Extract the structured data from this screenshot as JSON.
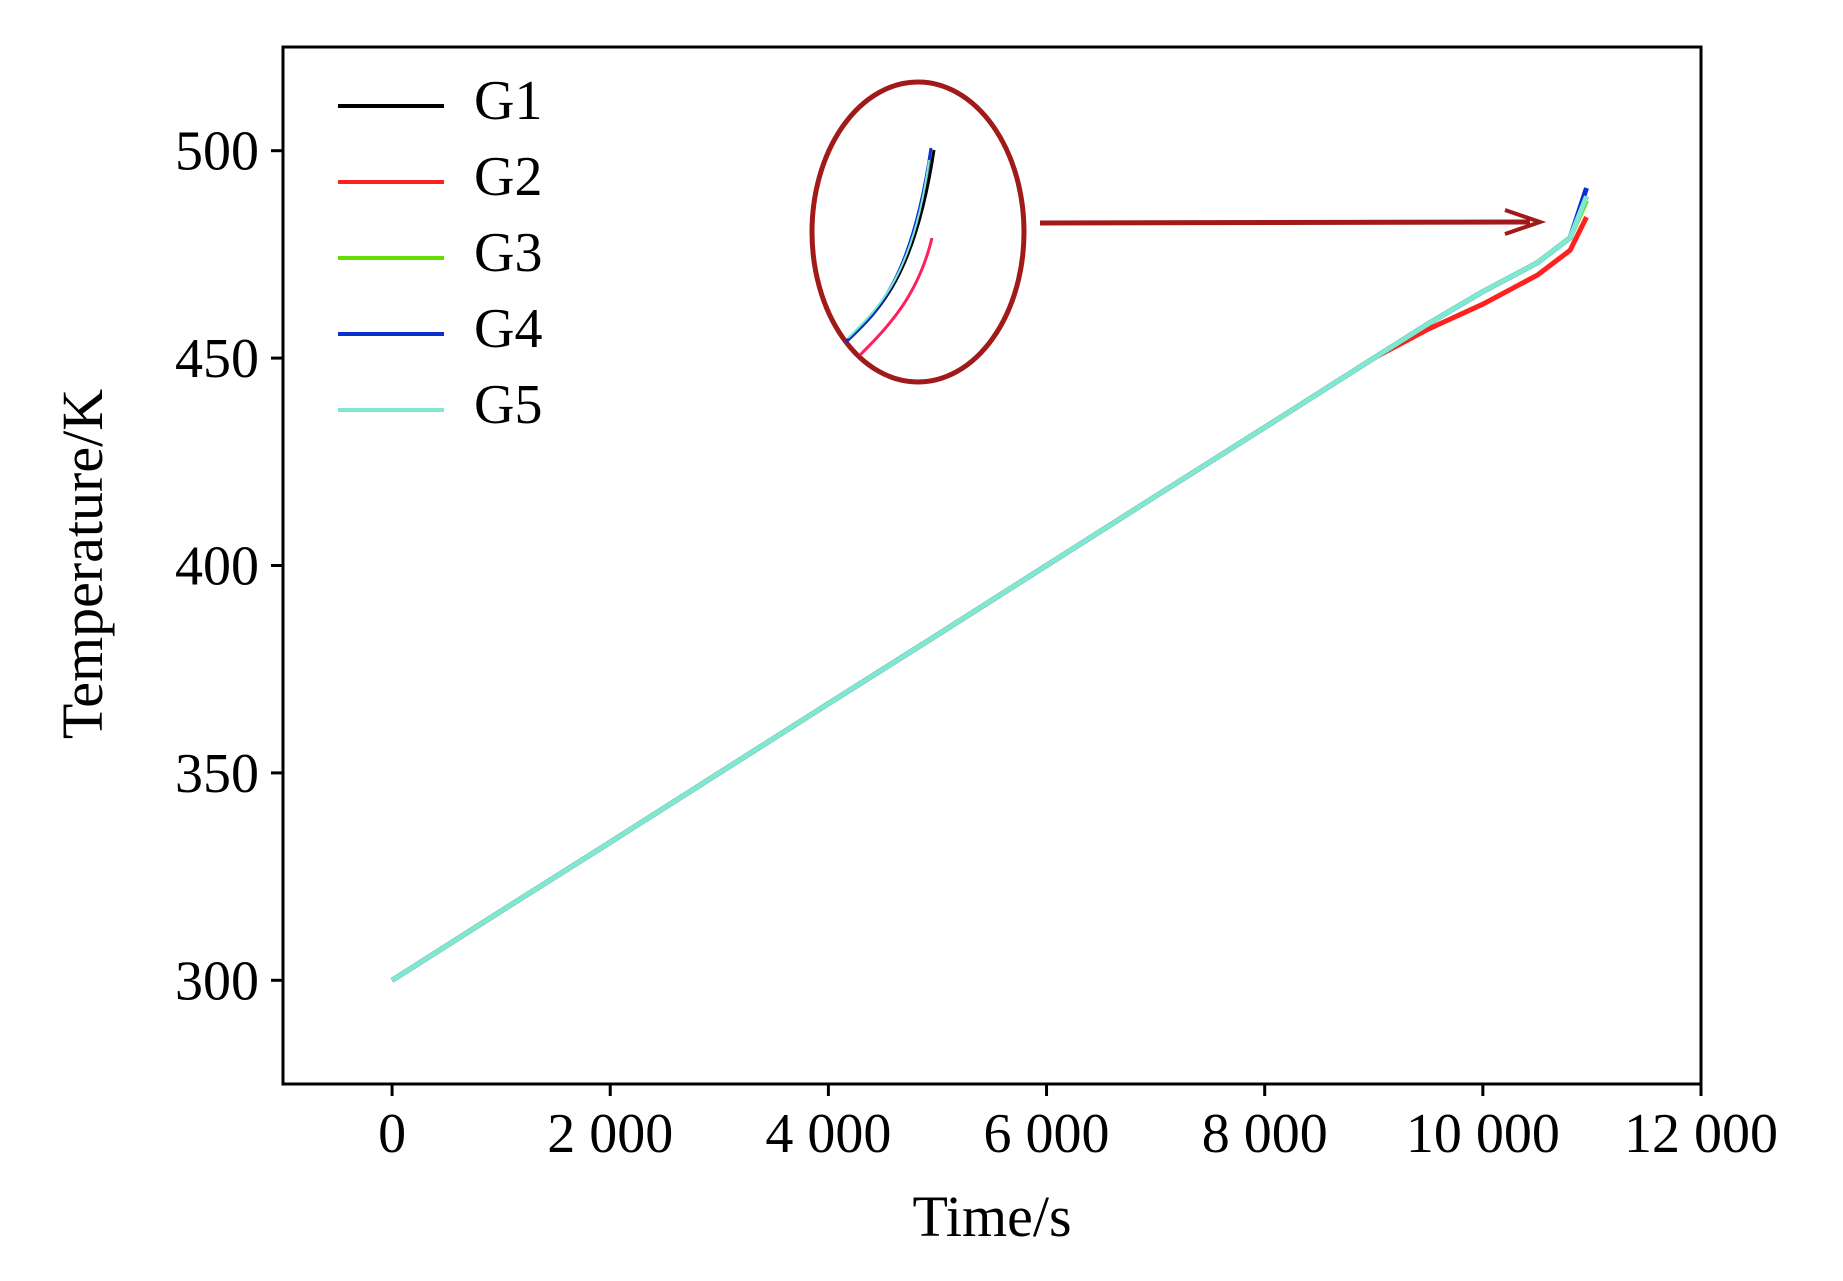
{
  "chart_data": {
    "type": "line",
    "x_label": "Time/s",
    "y_label": "Temperature/K",
    "xlim": [
      -1000,
      12000
    ],
    "ylim": [
      275,
      525
    ],
    "xticks": [
      0,
      {
        "value": 2000,
        "label": "2 000"
      },
      {
        "value": 4000,
        "label": "4 000"
      },
      {
        "value": 6000,
        "label": "6 000"
      },
      {
        "value": 8000,
        "label": "8 000"
      },
      {
        "value": 10000,
        "label": "10 000"
      },
      {
        "value": 12000,
        "label": "12 000"
      }
    ],
    "yticks": [
      300,
      350,
      400,
      450,
      500
    ],
    "legend": "upper left",
    "x": [
      0,
      1000,
      2000,
      3000,
      4000,
      5000,
      6000,
      7000,
      8000,
      9000,
      9500,
      10000,
      10500,
      10800,
      10950
    ],
    "series": [
      {
        "name": "G1",
        "color": "#000000",
        "values": [
          300,
          316.7,
          333.3,
          350,
          366.7,
          383.3,
          400,
          416.7,
          433.3,
          450,
          458.3,
          466,
          473,
          479,
          489
        ]
      },
      {
        "name": "G2",
        "color": "#ff2020",
        "values": [
          300,
          316.7,
          333.3,
          350,
          366.7,
          383.3,
          400,
          416.7,
          433.3,
          450,
          457,
          463,
          470,
          476,
          484
        ]
      },
      {
        "name": "G3",
        "color": "#66dd00",
        "values": [
          300,
          316.7,
          333.3,
          350,
          366.7,
          383.3,
          400,
          416.7,
          433.3,
          450,
          458.3,
          466,
          473,
          479,
          488
        ]
      },
      {
        "name": "G4",
        "color": "#0a2fd0",
        "values": [
          300,
          316.7,
          333.3,
          350,
          366.7,
          383.3,
          400,
          416.7,
          433.3,
          450,
          458.3,
          466,
          473,
          479,
          491
        ]
      },
      {
        "name": "G5",
        "color": "#7fe8d0",
        "values": [
          300,
          316.7,
          333.3,
          350,
          366.7,
          383.3,
          400,
          416.7,
          433.3,
          450,
          458.3,
          466,
          473,
          479,
          489
        ]
      }
    ]
  }
}
